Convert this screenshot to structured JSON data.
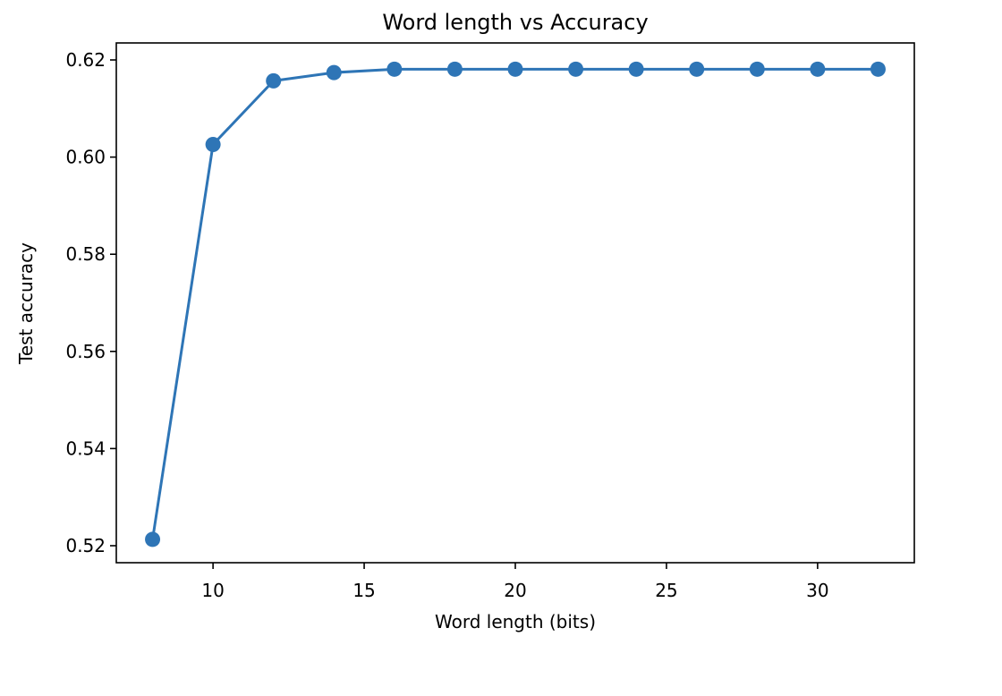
{
  "chart_data": {
    "type": "line",
    "title": "Word length vs Accuracy",
    "xlabel": "Word length (bits)",
    "ylabel": "Test accuracy",
    "x": [
      8,
      10,
      12,
      14,
      16,
      18,
      20,
      22,
      24,
      26,
      28,
      30,
      32
    ],
    "series": [
      {
        "values": [
          0.5213,
          0.6026,
          0.6157,
          0.6174,
          0.6181,
          0.6181,
          0.6181,
          0.6181,
          0.6181,
          0.6181,
          0.6181,
          0.6181,
          0.6181
        ],
        "color": "#2e75b6",
        "marker": "circle"
      }
    ],
    "xlim": [
      6.8,
      33.2
    ],
    "ylim": [
      0.5165,
      0.6235
    ],
    "xticks": [
      10,
      15,
      20,
      25,
      30
    ],
    "yticks": [
      0.52,
      0.54,
      0.56,
      0.58,
      0.6,
      0.62
    ],
    "ytick_labels": [
      "0.52",
      "0.54",
      "0.56",
      "0.58",
      "0.60",
      "0.62"
    ],
    "grid": false,
    "legend": "none"
  }
}
